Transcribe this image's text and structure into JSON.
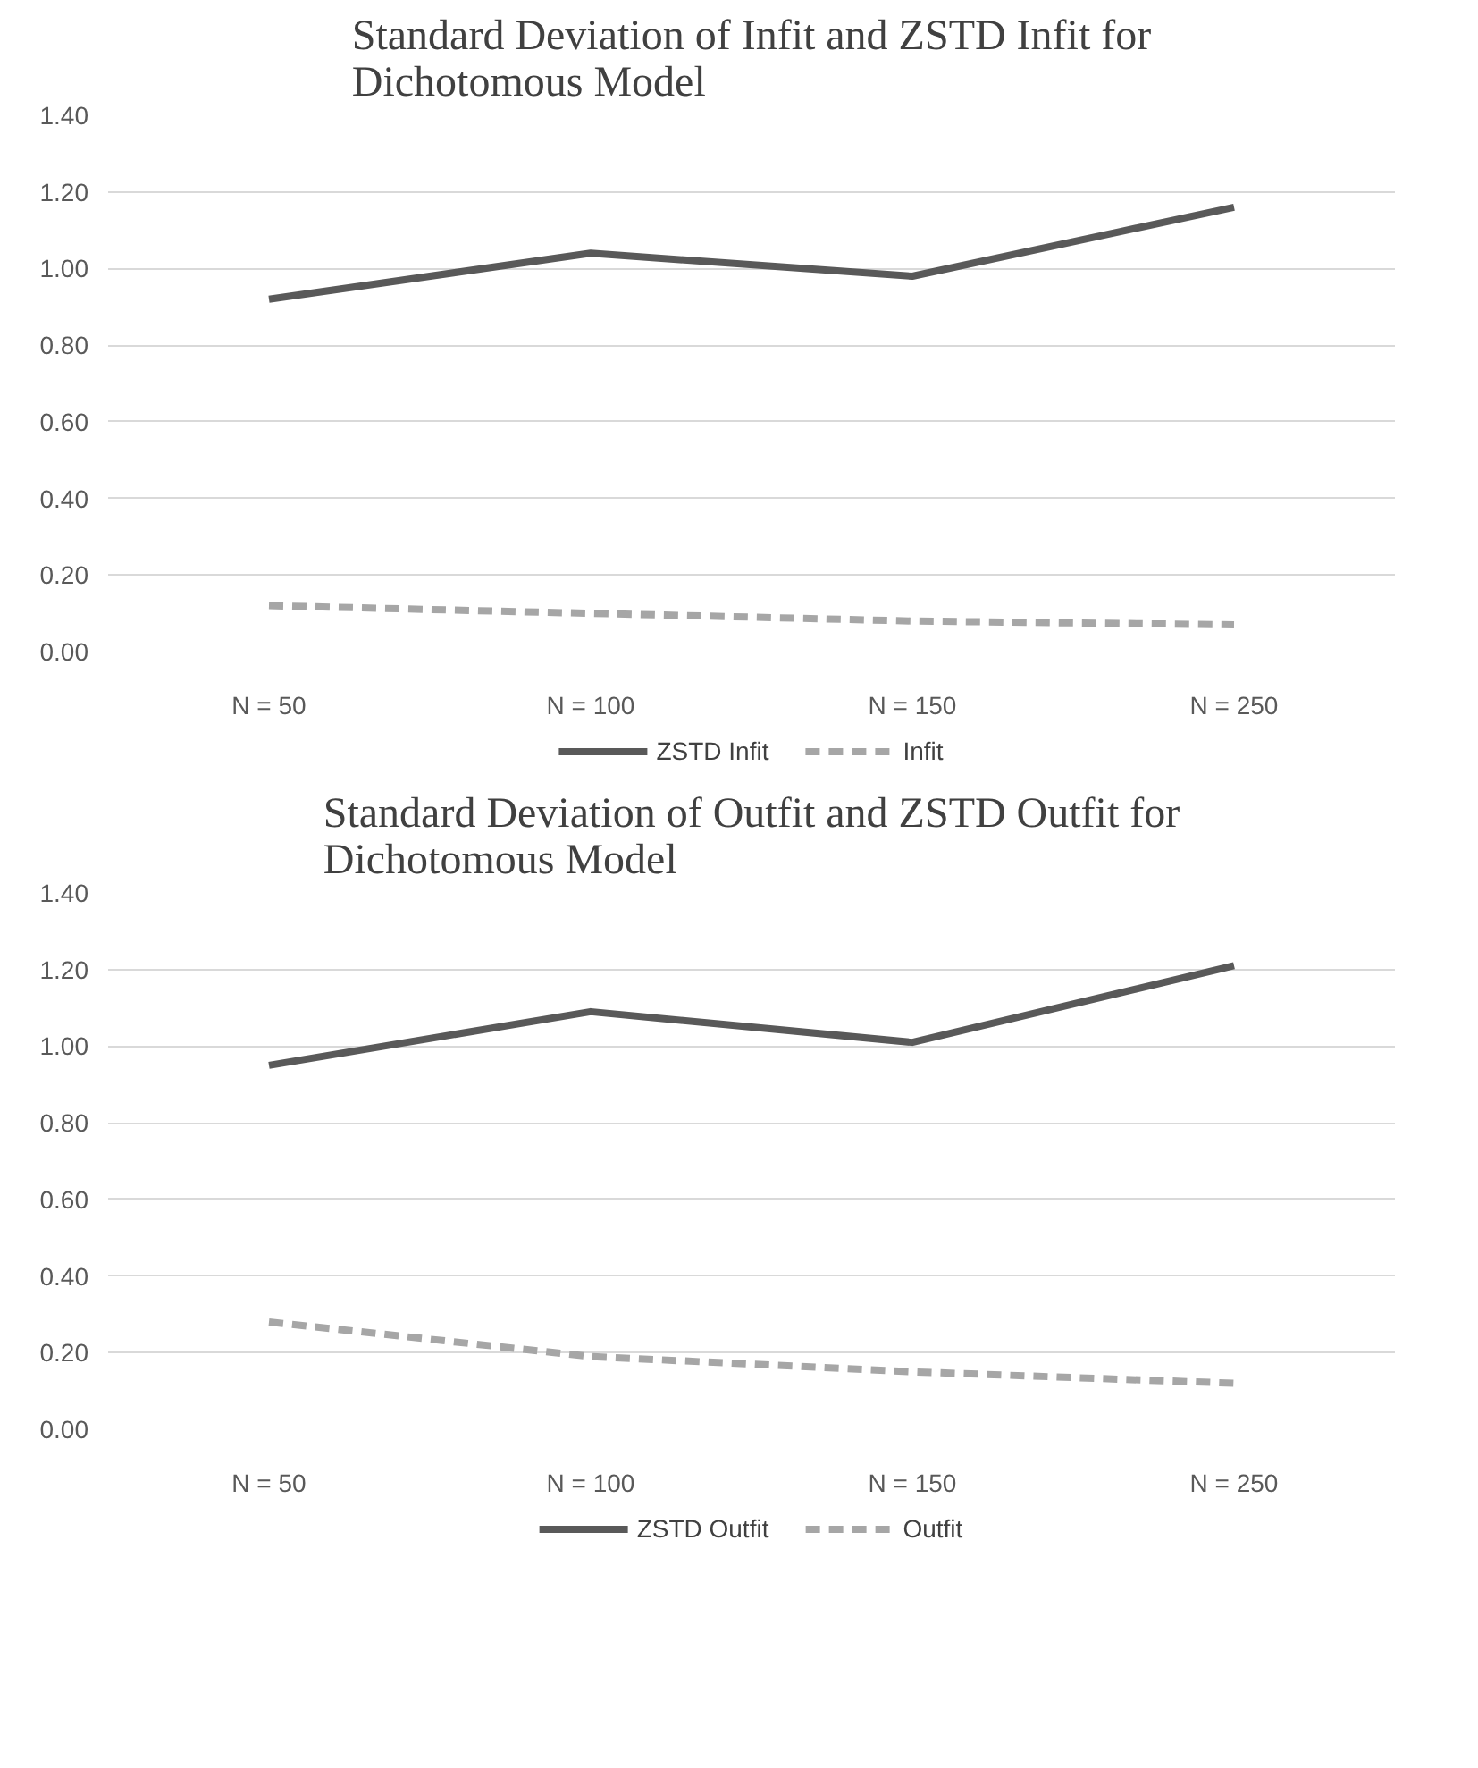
{
  "chart_data": [
    {
      "type": "line",
      "title": "Standard Deviation of Infit and ZSTD Infit for Dichotomous Model",
      "categories": [
        "N = 50",
        "N = 100",
        "N = 150",
        "N = 250"
      ],
      "series": [
        {
          "name": "ZSTD Infit",
          "color": "#595959",
          "values": [
            0.92,
            1.04,
            0.98,
            1.16
          ],
          "line_style": "solid"
        },
        {
          "name": "Infit",
          "color": "#a6a6a6",
          "values": [
            0.12,
            0.1,
            0.08,
            0.07
          ],
          "line_style": "dashed"
        }
      ],
      "ylim": [
        0,
        1.4
      ],
      "yticks": [
        {
          "value": 0,
          "label": "0.00"
        },
        {
          "value": 0.2,
          "label": "0.20"
        },
        {
          "value": 0.4,
          "label": "0.40"
        },
        {
          "value": 0.6,
          "label": "0.60"
        },
        {
          "value": 0.8,
          "label": "0.80"
        },
        {
          "value": 1.0,
          "label": "1.00"
        },
        {
          "value": 1.2,
          "label": "1.20"
        },
        {
          "value": 1.4,
          "label": "1.40"
        }
      ],
      "grid": "y",
      "legend": "bottom",
      "marker": "none"
    },
    {
      "type": "line",
      "title": "Standard Deviation of Outfit and ZSTD Outfit for Dichotomous Model",
      "categories": [
        "N = 50",
        "N = 100",
        "N = 150",
        "N = 250"
      ],
      "series": [
        {
          "name": "ZSTD Outfit",
          "color": "#595959",
          "values": [
            0.95,
            1.09,
            1.01,
            1.21
          ],
          "line_style": "solid"
        },
        {
          "name": "Outfit",
          "color": "#a6a6a6",
          "values": [
            0.28,
            0.19,
            0.15,
            0.12
          ],
          "line_style": "dashed"
        }
      ],
      "ylim": [
        0,
        1.4
      ],
      "yticks": [
        {
          "value": 0,
          "label": "0.00"
        },
        {
          "value": 0.2,
          "label": "0.20"
        },
        {
          "value": 0.4,
          "label": "0.40"
        },
        {
          "value": 0.6,
          "label": "0.60"
        },
        {
          "value": 0.8,
          "label": "0.80"
        },
        {
          "value": 1.0,
          "label": "1.00"
        },
        {
          "value": 1.2,
          "label": "1.20"
        },
        {
          "value": 1.4,
          "label": "1.40"
        }
      ],
      "grid": "y",
      "legend": "bottom",
      "marker": "none"
    }
  ]
}
